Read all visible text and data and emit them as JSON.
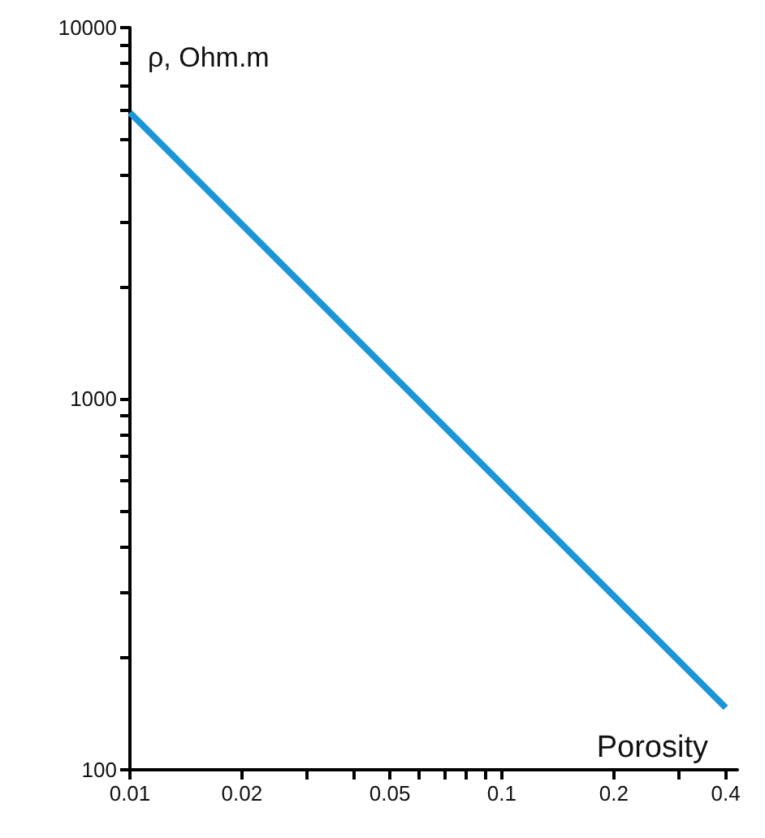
{
  "chart_data": {
    "type": "line",
    "xlabel": "Porosity",
    "ylabel": "ρ, Ohm.m",
    "log": "xy",
    "grid": false,
    "marker": "none",
    "line_style": "solid",
    "x": [
      0.01,
      0.4
    ],
    "series": [
      {
        "color": "#1a96d8",
        "values": [
          5900,
          147
        ]
      }
    ],
    "xlim": [
      0.01,
      0.43
    ],
    "xticks": [
      0.01,
      0.02,
      {
        "value": 0.03,
        "label": null
      },
      {
        "value": 0.04,
        "label": null
      },
      0.05,
      {
        "value": 0.06,
        "label": null
      },
      {
        "value": 0.07,
        "label": null
      },
      {
        "value": 0.08,
        "label": null
      },
      {
        "value": 0.09,
        "label": null
      },
      0.1,
      0.2,
      {
        "value": 0.3,
        "label": null
      },
      0.4
    ],
    "ylim": [
      100,
      10000
    ],
    "yticks": [
      100,
      {
        "value": 200,
        "label": null
      },
      {
        "value": 300,
        "label": null
      },
      {
        "value": 400,
        "label": null
      },
      {
        "value": 500,
        "label": null
      },
      {
        "value": 600,
        "label": null
      },
      {
        "value": 700,
        "label": null
      },
      {
        "value": 800,
        "label": null
      },
      {
        "value": 900,
        "label": null
      },
      1000,
      {
        "value": 2000,
        "label": null
      },
      {
        "value": 3000,
        "label": null
      },
      {
        "value": 4000,
        "label": null
      },
      {
        "value": 5000,
        "label": null
      },
      {
        "value": 6000,
        "label": null
      },
      {
        "value": 7000,
        "label": null
      },
      {
        "value": 8000,
        "label": null
      },
      {
        "value": 9000,
        "label": null
      },
      10000
    ]
  }
}
